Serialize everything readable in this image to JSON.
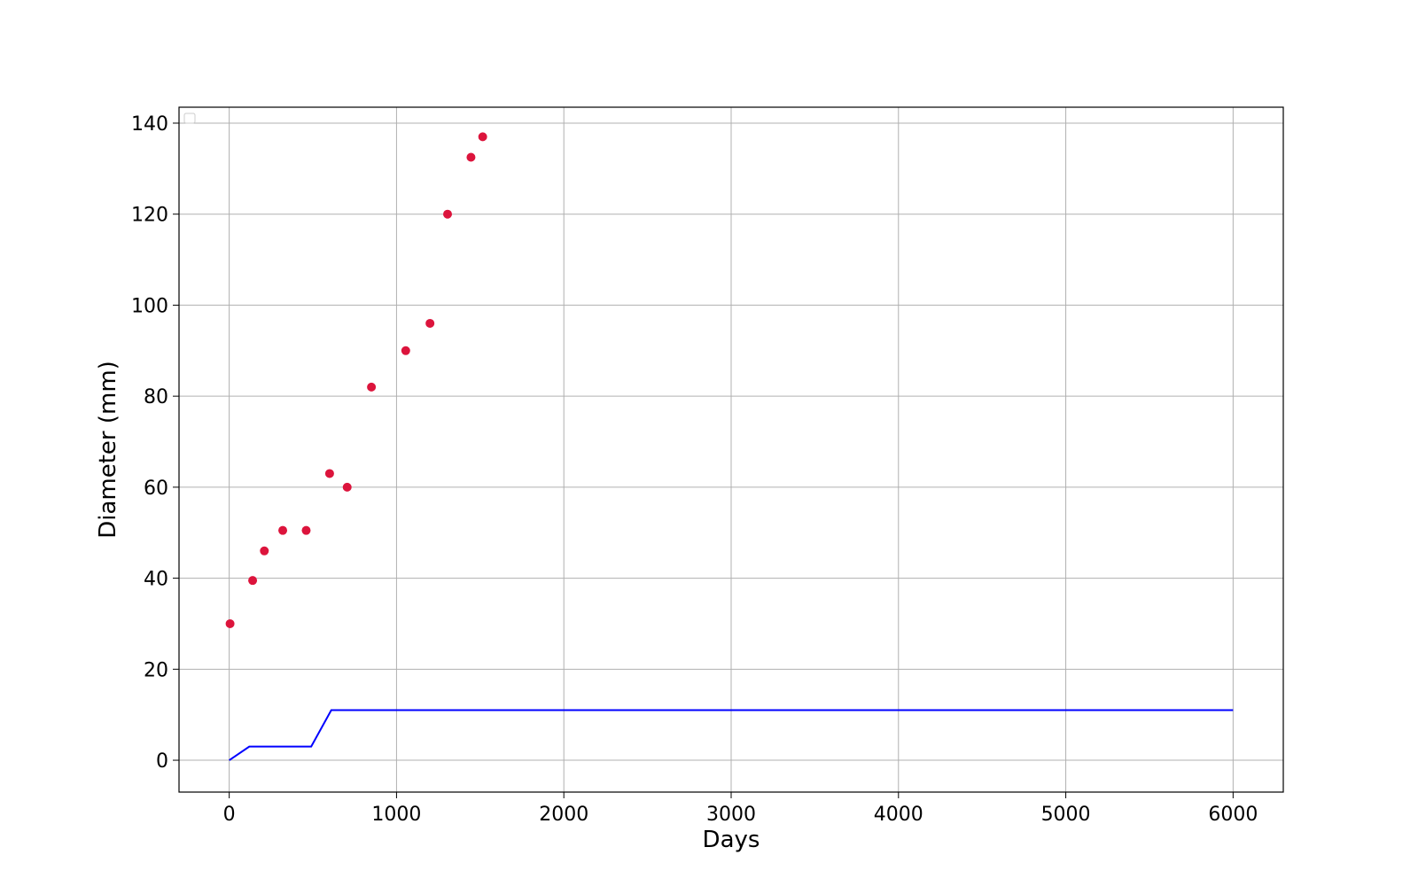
{
  "chart_data": {
    "type": "scatter",
    "title": "",
    "xlabel": "Days",
    "ylabel": "Diameter (mm)",
    "xlim": [
      -300,
      6300
    ],
    "ylim": [
      -7,
      143.5
    ],
    "xticks": [
      0,
      1000,
      2000,
      3000,
      4000,
      5000,
      6000
    ],
    "yticks": [
      0,
      20,
      40,
      60,
      80,
      100,
      120,
      140
    ],
    "grid": true,
    "legend": "top-left",
    "series": [
      {
        "kind": "scatter",
        "color": "#dc143c",
        "x": [
          5,
          140,
          210,
          320,
          460,
          600,
          705,
          850,
          1055,
          1200,
          1305,
          1445,
          1515
        ],
        "y": [
          30,
          39.5,
          46,
          50.5,
          50.5,
          63,
          60,
          82,
          90,
          96,
          120,
          132.5,
          137
        ]
      },
      {
        "kind": "line",
        "color": "#0000ff",
        "x": [
          0,
          120,
          490,
          610,
          6000
        ],
        "y": [
          0,
          3,
          3,
          11,
          11
        ]
      }
    ]
  }
}
